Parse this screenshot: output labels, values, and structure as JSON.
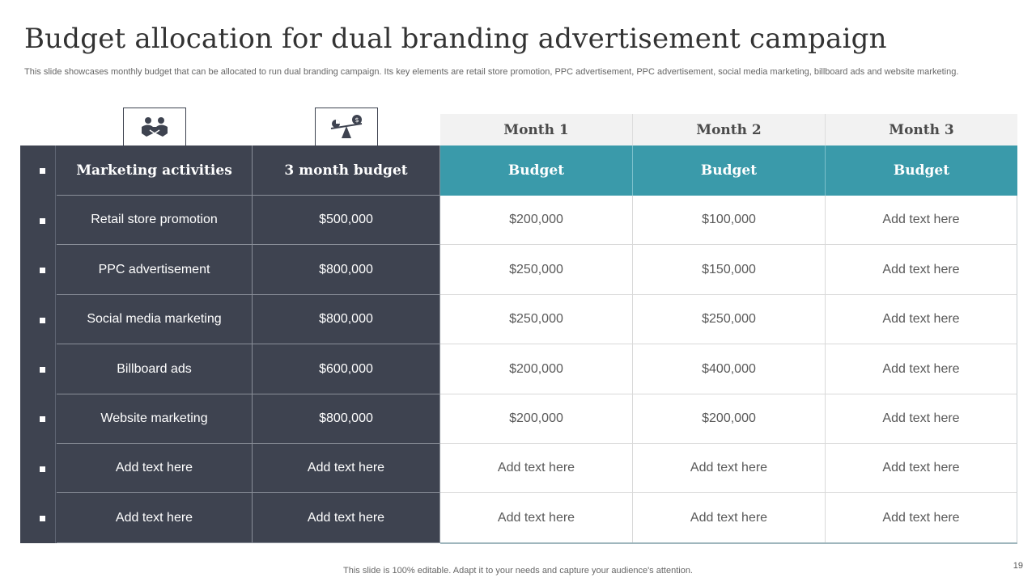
{
  "slide": {
    "title": "Budget allocation for dual branding advertisement campaign",
    "subtitle": "This slide showcases monthly budget that can be allocated to run dual branding campaign. Its key elements are retail store promotion, PPC advertisement, PPC advertisement, social media marketing, billboard ads and website marketing.",
    "footer": "This slide is 100% editable. Adapt it to your needs and capture your audience's attention.",
    "page_number": "19"
  },
  "icons": {
    "activities": "handshake-icon",
    "budget": "balance-scale-money-icon"
  },
  "colors": {
    "dark": "#3e4350",
    "teal": "#3a9aaa",
    "month_header_bg": "#f2f2f2"
  },
  "table": {
    "month_headers": [
      "Month 1",
      "Month 2",
      "Month 3"
    ],
    "headers": [
      "Marketing activities",
      "3 month budget",
      "Budget",
      "Budget",
      "Budget"
    ],
    "rows": [
      [
        "Retail store promotion",
        "$500,000",
        "$200,000",
        "$100,000",
        "Add text here"
      ],
      [
        "PPC advertisement",
        "$800,000",
        "$250,000",
        "$150,000",
        "Add text here"
      ],
      [
        "Social media marketing",
        "$800,000",
        "$250,000",
        "$250,000",
        "Add text here"
      ],
      [
        "Billboard ads",
        "$600,000",
        "$200,000",
        "$400,000",
        "Add text here"
      ],
      [
        "Website marketing",
        "$800,000",
        "$200,000",
        "$200,000",
        "Add text here"
      ],
      [
        "Add text here",
        "Add text here",
        "Add text here",
        "Add text here",
        "Add text here"
      ],
      [
        "Add text here",
        "Add text here",
        "Add text here",
        "Add text here",
        "Add text here"
      ]
    ]
  }
}
